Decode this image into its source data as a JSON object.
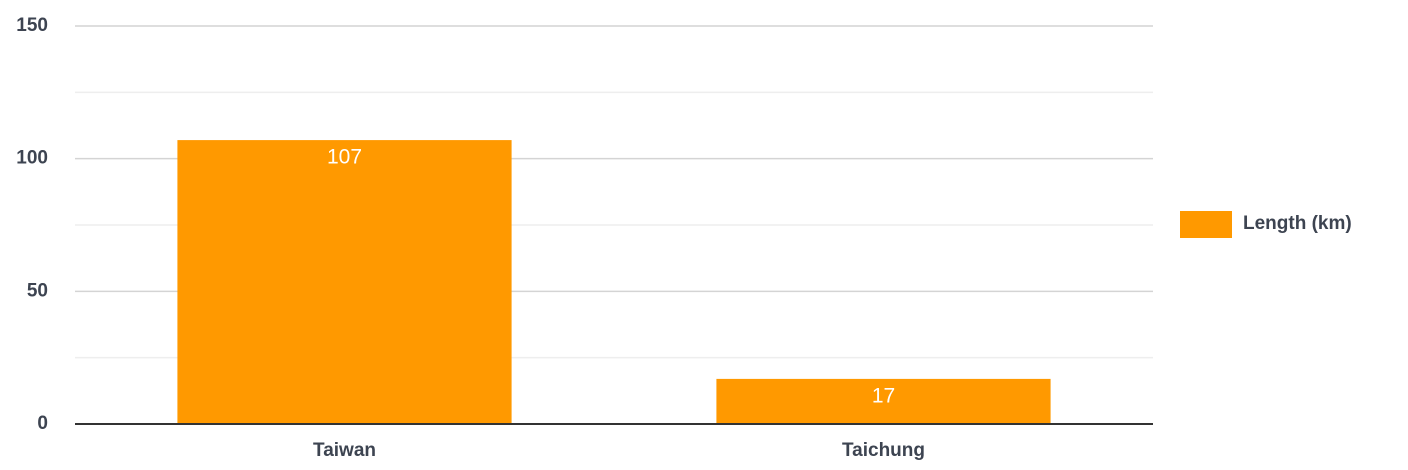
{
  "chart_data": {
    "type": "bar",
    "categories": [
      "Taiwan",
      "Taichung"
    ],
    "series": [
      {
        "name": "Length (km)",
        "color": "#ff9900",
        "values": [
          107,
          17
        ]
      }
    ],
    "ylim": [
      0,
      150
    ],
    "yticks": [
      0,
      50,
      100,
      150
    ],
    "minor_yticks": [
      25,
      75,
      125
    ],
    "grid": true,
    "legend": "right",
    "data_labels": true
  }
}
